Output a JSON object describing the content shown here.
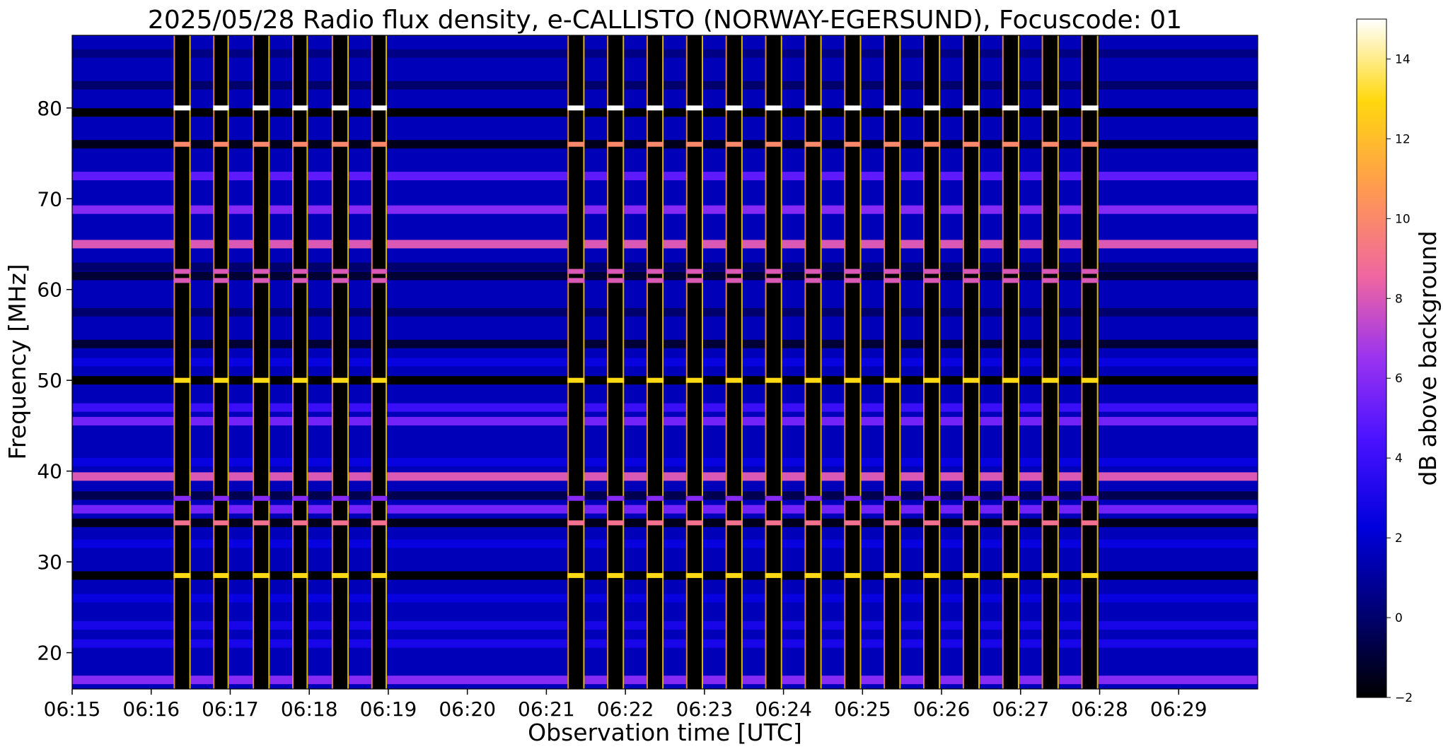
{
  "chart_data": {
    "type": "heatmap",
    "title": "2025/05/28  Radio flux density, e-CALLISTO (NORWAY-EGERSUND), Focuscode: 01",
    "xlabel": "Observation time [UTC]",
    "ylabel": "Frequency [MHz]",
    "colorbar_label": "dB above background",
    "colormap": "gnuplot2",
    "x_range": [
      "06:15",
      "06:30"
    ],
    "x_ticks": [
      "06:15",
      "06:16",
      "06:17",
      "06:18",
      "06:19",
      "06:20",
      "06:21",
      "06:22",
      "06:23",
      "06:24",
      "06:25",
      "06:26",
      "06:27",
      "06:28",
      "06:29"
    ],
    "ylim": [
      16,
      88
    ],
    "y_ticks": [
      20,
      30,
      40,
      50,
      60,
      70,
      80
    ],
    "clim": [
      -2,
      15
    ],
    "colorbar_ticks": [
      -2,
      0,
      2,
      4,
      6,
      8,
      10,
      12,
      14
    ],
    "horizontal_bands": [
      {
        "freq": 17,
        "level": 6
      },
      {
        "freq": 21,
        "level": 3
      },
      {
        "freq": 23,
        "level": 3
      },
      {
        "freq": 26,
        "level": 2.5
      },
      {
        "freq": 28.5,
        "level": -2
      },
      {
        "freq": 32,
        "level": 2.5
      },
      {
        "freq": 34.3,
        "level": -1.5
      },
      {
        "freq": 35.8,
        "level": 5.5
      },
      {
        "freq": 37.3,
        "level": -0.5
      },
      {
        "freq": 39.4,
        "level": 8
      },
      {
        "freq": 41,
        "level": 2.5
      },
      {
        "freq": 45.5,
        "level": 5.5
      },
      {
        "freq": 47,
        "level": 4
      },
      {
        "freq": 50,
        "level": -2
      },
      {
        "freq": 52,
        "level": 2.5
      },
      {
        "freq": 54,
        "level": -1
      },
      {
        "freq": 57.5,
        "level": 0
      },
      {
        "freq": 61.5,
        "level": -1
      },
      {
        "freq": 62.5,
        "level": 0
      },
      {
        "freq": 65,
        "level": 8
      },
      {
        "freq": 68.8,
        "level": 6
      },
      {
        "freq": 72.5,
        "level": 5
      },
      {
        "freq": 76,
        "level": -1.5
      },
      {
        "freq": 79.5,
        "level": -2
      },
      {
        "freq": 82.5,
        "level": 0
      },
      {
        "freq": 86,
        "level": 0.5
      }
    ],
    "burst_columns": [
      {
        "start": "06:16:17",
        "end": "06:16:30"
      },
      {
        "start": "06:16:47",
        "end": "06:16:59"
      },
      {
        "start": "06:17:17",
        "end": "06:17:30"
      },
      {
        "start": "06:17:47",
        "end": "06:17:59"
      },
      {
        "start": "06:18:17",
        "end": "06:18:30"
      },
      {
        "start": "06:18:47",
        "end": "06:18:59"
      },
      {
        "start": "06:21:16",
        "end": "06:21:29"
      },
      {
        "start": "06:21:46",
        "end": "06:21:59"
      },
      {
        "start": "06:22:16",
        "end": "06:22:29"
      },
      {
        "start": "06:22:46",
        "end": "06:22:59"
      },
      {
        "start": "06:23:16",
        "end": "06:23:29"
      },
      {
        "start": "06:23:46",
        "end": "06:23:59"
      },
      {
        "start": "06:24:16",
        "end": "06:24:29"
      },
      {
        "start": "06:24:46",
        "end": "06:24:59"
      },
      {
        "start": "06:25:16",
        "end": "06:25:29"
      },
      {
        "start": "06:25:46",
        "end": "06:25:59"
      },
      {
        "start": "06:26:16",
        "end": "06:26:29"
      },
      {
        "start": "06:26:46",
        "end": "06:26:59"
      },
      {
        "start": "06:27:16",
        "end": "06:27:29"
      },
      {
        "start": "06:27:46",
        "end": "06:27:59"
      }
    ],
    "burst_column_bright_lines": [
      {
        "freq": 80,
        "level": 15
      },
      {
        "freq": 76,
        "level": 10
      },
      {
        "freq": 62,
        "level": 8
      },
      {
        "freq": 61,
        "level": 8
      },
      {
        "freq": 50,
        "level": 13
      },
      {
        "freq": 37,
        "level": 6
      },
      {
        "freq": 34.3,
        "level": 9
      },
      {
        "freq": 28.5,
        "level": 13
      }
    ]
  }
}
